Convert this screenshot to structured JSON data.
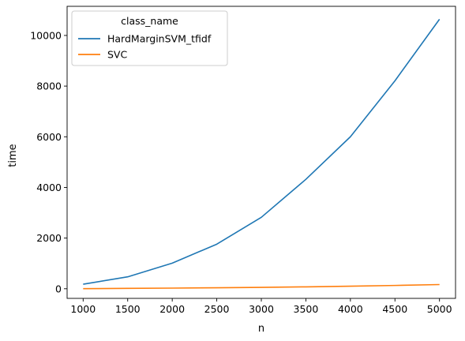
{
  "chart_data": {
    "type": "line",
    "title": "",
    "xlabel": "n",
    "ylabel": "time",
    "xlim": [
      820,
      5180
    ],
    "ylim": [
      -380,
      11150
    ],
    "x_ticks": [
      1000,
      1500,
      2000,
      2500,
      3000,
      3500,
      4000,
      4500,
      5000
    ],
    "y_ticks": [
      0,
      2000,
      4000,
      6000,
      8000,
      10000
    ],
    "grid": false,
    "legend": {
      "title": "class_name",
      "placement": "top-left"
    },
    "series": [
      {
        "name": "HardMarginSVM_tfidf",
        "color": "#1f77b4",
        "x": [
          1000,
          1500,
          2000,
          2500,
          3000,
          3500,
          4000,
          4500,
          5000
        ],
        "values": [
          180,
          470,
          1010,
          1760,
          2820,
          4320,
          6000,
          8210,
          10640
        ]
      },
      {
        "name": "SVC",
        "color": "#ff7f0e",
        "x": [
          1000,
          1500,
          2000,
          2500,
          3000,
          3500,
          4000,
          4500,
          5000
        ],
        "values": [
          5,
          15,
          25,
          40,
          55,
          75,
          100,
          130,
          165
        ]
      }
    ]
  }
}
